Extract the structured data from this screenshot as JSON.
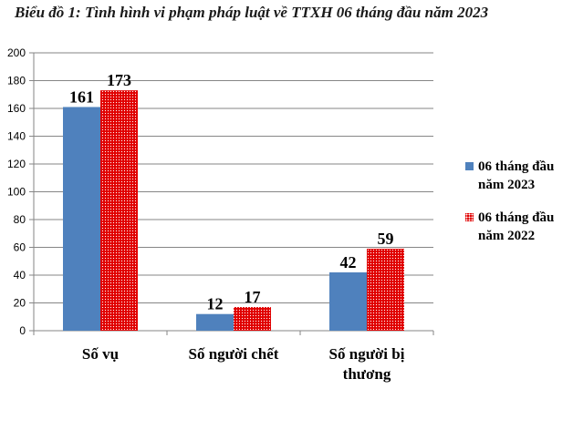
{
  "chart_data": {
    "type": "bar",
    "title": "Biểu đồ 1: Tình hình vi phạm pháp luật về TTXH 06 tháng đầu năm 2023",
    "categories": [
      [
        "Số vụ"
      ],
      [
        "Số người chết"
      ],
      [
        "Số người bị",
        "thương"
      ]
    ],
    "series": [
      {
        "name": "06 tháng đầu năm 2023",
        "lines": [
          "06 tháng đầu",
          "năm 2023"
        ],
        "values": [
          161,
          12,
          42
        ],
        "color": "#4f81bd"
      },
      {
        "name": "06 tháng đầu năm 2022",
        "lines": [
          "06 tháng đầu",
          "năm 2022"
        ],
        "values": [
          173,
          17,
          59
        ],
        "color": "#e00000"
      }
    ],
    "ylim": [
      0,
      200
    ],
    "yticks": [
      0,
      20,
      40,
      60,
      80,
      100,
      120,
      140,
      160,
      180,
      200
    ],
    "grid": true,
    "legend": "right",
    "data_labels": true
  }
}
